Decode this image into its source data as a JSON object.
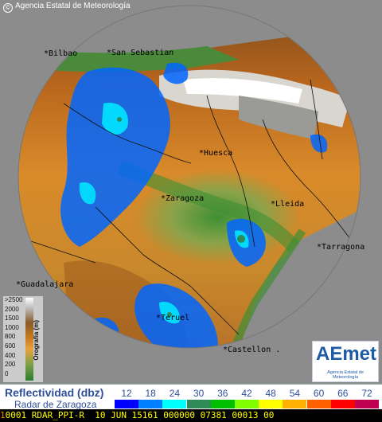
{
  "header": {
    "agency": "Agencia Estatal de Meteorología",
    "agency_icon": "copyright-icon"
  },
  "map": {
    "background_color": "#8c8c8c",
    "cities": [
      {
        "id": "huesca",
        "label": "Huesca"
      },
      {
        "id": "zaragoza",
        "label": "Zaragoza"
      },
      {
        "id": "lleida",
        "label": "Lleida"
      },
      {
        "id": "tarragona",
        "label": "Tarragona"
      },
      {
        "id": "guadalajara",
        "label": "Guadalajara"
      },
      {
        "id": "teruel",
        "label": "Teruel"
      },
      {
        "id": "castellon",
        "label": "Castellon ."
      },
      {
        "id": "bilbao",
        "label": "Bilbao"
      },
      {
        "id": "san-sebastian",
        "label": "San Sebastian"
      }
    ]
  },
  "orography": {
    "title": "Orografía (m)",
    "levels": [
      ">2500",
      "2000",
      "1500",
      "1000",
      "800",
      "600",
      "400",
      "200",
      "0"
    ]
  },
  "logo": {
    "mark": "AEmet",
    "subtitle": "Agencia Estatal de Meteorología"
  },
  "legend": {
    "title": "Reflectividad (dbz)",
    "subtitle": "Radar de Zaragoza",
    "ticks": [
      "12",
      "18",
      "24",
      "30",
      "36",
      "42",
      "48",
      "54",
      "60",
      "66",
      "72"
    ],
    "colors": [
      "#0000ff",
      "#0080ff",
      "#00ffff",
      "#2e8b57",
      "#00c000",
      "#80ff00",
      "#ffff00",
      "#ffb000",
      "#ff6000",
      "#ff0000",
      "#c00050"
    ]
  },
  "status": {
    "lead": "1",
    "text": "0001 RDAR_PPI-R  10 JUN 15161 000000 07381 00013 00"
  }
}
